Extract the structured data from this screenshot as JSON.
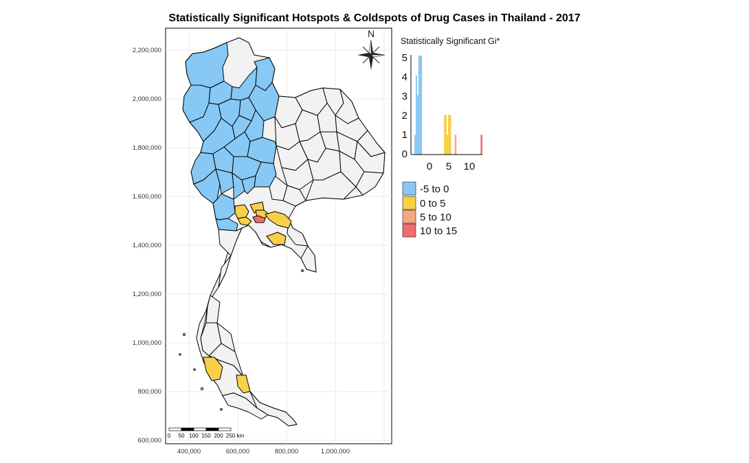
{
  "title": "Statistically Significant Hotspots & Coldspots of Drug Cases in Thailand - 2017",
  "map": {
    "y_ticks": [
      "2,200,000",
      "2,000,000",
      "1,800,000",
      "1,600,000",
      "1,400,000",
      "1,200,000",
      "1,000,000",
      "800,000",
      "600,000"
    ],
    "x_ticks": [
      "400,000",
      "600,000",
      "800,000",
      "1,000,000"
    ],
    "north_label": "N",
    "scalebar_labels": [
      "0",
      "50",
      "100",
      "150",
      "200",
      "250 km"
    ],
    "colors": {
      "neutral": "#f2f2f2",
      "coldspot": "#87c8f4",
      "hot_low": "#f8cf48",
      "hot_mid": "#f5a981",
      "hot_high": "#f46b6b",
      "border": "#000000"
    }
  },
  "histogram": {
    "title": "Statistically Significant Gi*",
    "y_ticks": [
      "5",
      "4",
      "3",
      "2",
      "1",
      "0"
    ],
    "x_ticks": [
      "0",
      "5",
      "10"
    ]
  },
  "legend": {
    "items": [
      {
        "label": "-5 to 0",
        "color": "#87c8f4"
      },
      {
        "label": "0 to 5",
        "color": "#f8cf48"
      },
      {
        "label": "5 to 10",
        "color": "#f5a981"
      },
      {
        "label": "10 to 15",
        "color": "#f46b6b"
      }
    ]
  },
  "chart_data": {
    "type": "bar",
    "title": "Statistically Significant Gi*",
    "xlabel": "",
    "ylabel": "",
    "ylim": [
      0,
      5
    ],
    "xlim": [
      -4,
      12
    ],
    "bins": [
      {
        "x0": -3.2,
        "x1": -2.9,
        "value": 1,
        "color": "#87c8f4"
      },
      {
        "x0": -2.9,
        "x1": -2.6,
        "value": 4,
        "color": "#87c8f4"
      },
      {
        "x0": -2.6,
        "x1": -2.3,
        "value": 3,
        "color": "#87c8f4"
      },
      {
        "x0": -2.3,
        "x1": -1.5,
        "value": 5,
        "color": "#87c8f4"
      },
      {
        "x0": 3.4,
        "x1": 4.0,
        "value": 2,
        "color": "#f8cf48"
      },
      {
        "x0": 4.0,
        "x1": 4.3,
        "value": 1,
        "color": "#f8cf48"
      },
      {
        "x0": 4.3,
        "x1": 5.0,
        "value": 2,
        "color": "#f8cf48"
      },
      {
        "x0": 5.8,
        "x1": 6.2,
        "value": 1,
        "color": "#f5a981"
      },
      {
        "x0": 11.6,
        "x1": 12.0,
        "value": 1,
        "color": "#f46b6b"
      }
    ]
  }
}
